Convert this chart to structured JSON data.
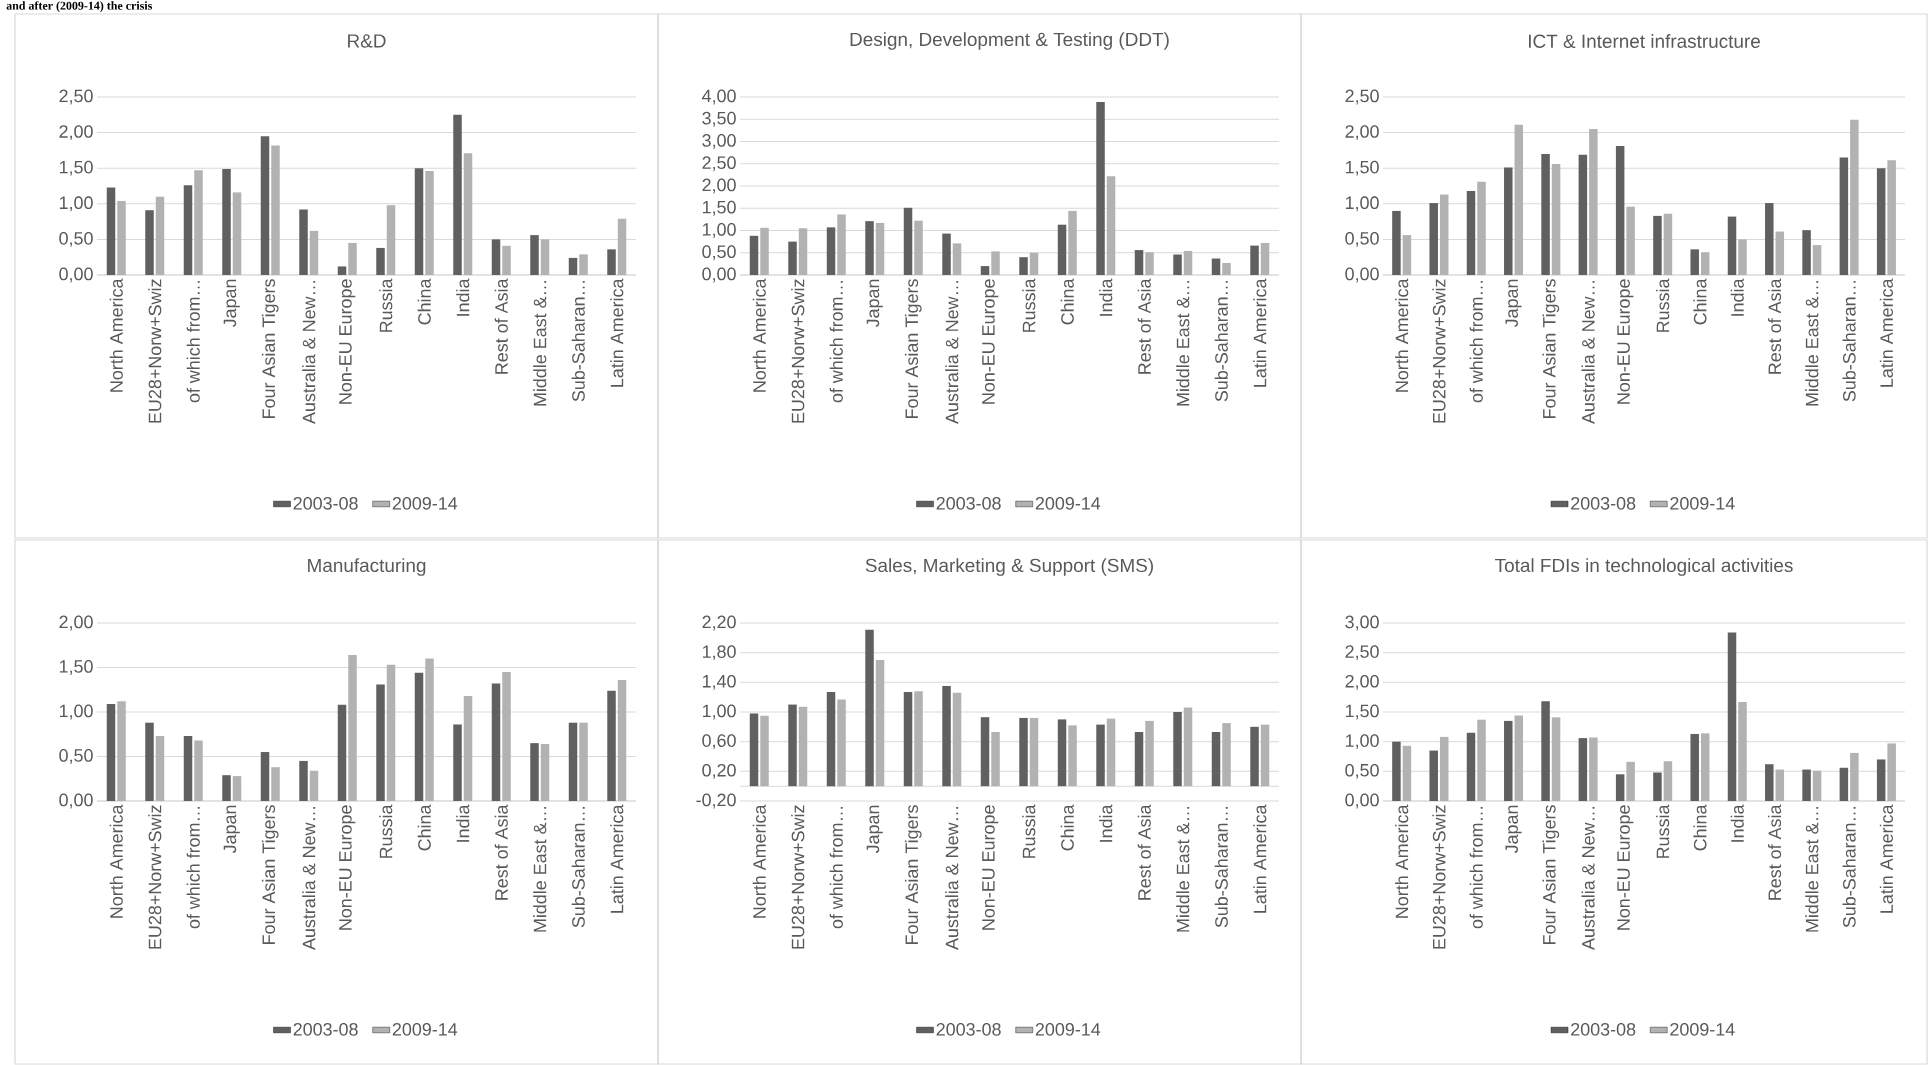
{
  "chart_data": [
    {
      "type": "bar",
      "title": "R&D",
      "annotations": [
        "and after (2009-14) the crisis"
      ],
      "categories": [
        "North America",
        "EU28+Norw+Swiz",
        "of which from…",
        "Japan",
        "Four Asian Tigers",
        "Australia & New…",
        "Non-EU Europe",
        "Russia",
        "China",
        "India",
        "Rest of Asia",
        "Middle East &…",
        "Sub-Saharan…",
        "Latin America"
      ],
      "series": [
        {
          "name": "2003-08",
          "color": "#606060",
          "values": [
            1.23,
            0.91,
            1.26,
            1.49,
            1.95,
            0.92,
            0.12,
            0.38,
            1.5,
            2.25,
            0.5,
            0.56,
            0.24,
            0.36
          ]
        },
        {
          "name": "2009-14",
          "color": "#b2b2b2",
          "values": [
            1.04,
            1.1,
            1.47,
            1.16,
            1.82,
            0.62,
            0.45,
            0.98,
            1.46,
            1.71,
            0.41,
            0.5,
            0.29,
            0.79
          ]
        }
      ],
      "ylim": [
        0,
        2.5
      ],
      "yticks": [
        {
          "value": 0,
          "label": "0,00"
        },
        {
          "value": 0.5,
          "label": "0,50"
        },
        {
          "value": 1,
          "label": "1,00"
        },
        {
          "value": 1.5,
          "label": "1,50"
        },
        {
          "value": 2,
          "label": "2,00"
        },
        {
          "value": 2.5,
          "label": "2,50"
        }
      ],
      "grid": "y",
      "legend": "bottom"
    },
    {
      "type": "bar",
      "title": "Design, Development & Testing (DDT)",
      "categories": [
        "North America",
        "EU28+Norw+Swiz",
        "of which from…",
        "Japan",
        "Four Asian Tigers",
        "Australia & New…",
        "Non-EU Europe",
        "Russia",
        "China",
        "India",
        "Rest of Asia",
        "Middle East &…",
        "Sub-Saharan…",
        "Latin America"
      ],
      "series": [
        {
          "name": "2003-08",
          "color": "#606060",
          "values": [
            0.88,
            0.75,
            1.07,
            1.21,
            1.51,
            0.93,
            0.2,
            0.4,
            1.13,
            3.89,
            0.56,
            0.46,
            0.37,
            0.66
          ]
        },
        {
          "name": "2009-14",
          "color": "#b2b2b2",
          "values": [
            1.06,
            1.05,
            1.36,
            1.17,
            1.22,
            0.71,
            0.53,
            0.5,
            1.44,
            2.22,
            0.51,
            0.54,
            0.27,
            0.72
          ]
        }
      ],
      "ylim": [
        0,
        4
      ],
      "yticks": [
        {
          "value": 0,
          "label": "0,00"
        },
        {
          "value": 0.5,
          "label": "0,50"
        },
        {
          "value": 1,
          "label": "1,00"
        },
        {
          "value": 1.5,
          "label": "1,50"
        },
        {
          "value": 2,
          "label": "2,00"
        },
        {
          "value": 2.5,
          "label": "2,50"
        },
        {
          "value": 3,
          "label": "3,00"
        },
        {
          "value": 3.5,
          "label": "3,50"
        },
        {
          "value": 4,
          "label": "4,00"
        }
      ],
      "grid": "y",
      "legend": "bottom"
    },
    {
      "type": "bar",
      "title": "ICT & Internet infrastructure",
      "categories": [
        "North America",
        "EU28+Norw+Swiz",
        "of which from…",
        "Japan",
        "Four Asian Tigers",
        "Australia & New…",
        "Non-EU Europe",
        "Russia",
        "China",
        "India",
        "Rest of Asia",
        "Middle East &…",
        "Sub-Saharan…",
        "Latin America"
      ],
      "series": [
        {
          "name": "2003-08",
          "color": "#606060",
          "values": [
            0.9,
            1.01,
            1.18,
            1.51,
            1.7,
            1.69,
            1.81,
            0.83,
            0.36,
            0.82,
            1.01,
            0.63,
            1.65,
            1.5
          ]
        },
        {
          "name": "2009-14",
          "color": "#b2b2b2",
          "values": [
            0.56,
            1.13,
            1.31,
            2.11,
            1.56,
            2.05,
            0.96,
            0.86,
            0.32,
            0.5,
            0.61,
            0.42,
            2.18,
            1.61
          ]
        }
      ],
      "ylim": [
        0,
        2.5
      ],
      "yticks": [
        {
          "value": 0,
          "label": "0,00"
        },
        {
          "value": 0.5,
          "label": "0,50"
        },
        {
          "value": 1,
          "label": "1,00"
        },
        {
          "value": 1.5,
          "label": "1,50"
        },
        {
          "value": 2,
          "label": "2,00"
        },
        {
          "value": 2.5,
          "label": "2,50"
        }
      ],
      "grid": "y",
      "legend": "bottom"
    },
    {
      "type": "bar",
      "title": "Manufacturing",
      "categories": [
        "North America",
        "EU28+Norw+Swiz",
        "of which from…",
        "Japan",
        "Four Asian Tigers",
        "Australia & New…",
        "Non-EU Europe",
        "Russia",
        "China",
        "India",
        "Rest of Asia",
        "Middle East &…",
        "Sub-Saharan…",
        "Latin America"
      ],
      "series": [
        {
          "name": "2003-08",
          "color": "#606060",
          "values": [
            1.09,
            0.88,
            0.73,
            0.29,
            0.55,
            0.45,
            1.08,
            1.31,
            1.44,
            0.86,
            1.32,
            0.65,
            0.88,
            1.24
          ]
        },
        {
          "name": "2009-14",
          "color": "#b2b2b2",
          "values": [
            1.12,
            0.73,
            0.68,
            0.28,
            0.38,
            0.34,
            1.64,
            1.53,
            1.6,
            1.18,
            1.45,
            0.64,
            0.88,
            1.36
          ]
        }
      ],
      "ylim": [
        0,
        2
      ],
      "yticks": [
        {
          "value": 0,
          "label": "0,00"
        },
        {
          "value": 0.5,
          "label": "0,50"
        },
        {
          "value": 1,
          "label": "1,00"
        },
        {
          "value": 1.5,
          "label": "1,50"
        },
        {
          "value": 2,
          "label": "2,00"
        }
      ],
      "grid": "y",
      "legend": "bottom"
    },
    {
      "type": "bar",
      "title": "Sales, Marketing & Support (SMS)",
      "categories": [
        "North America",
        "EU28+Norw+Swiz",
        "of which from…",
        "Japan",
        "Four Asian Tigers",
        "Australia & New…",
        "Non-EU Europe",
        "Russia",
        "China",
        "India",
        "Rest of Asia",
        "Middle East &…",
        "Sub-Saharan…",
        "Latin America"
      ],
      "series": [
        {
          "name": "2003-08",
          "color": "#606060",
          "values": [
            0.98,
            1.1,
            1.27,
            2.11,
            1.27,
            1.35,
            0.93,
            0.92,
            0.9,
            0.83,
            0.73,
            1.0,
            0.73,
            0.8
          ]
        },
        {
          "name": "2009-14",
          "color": "#b2b2b2",
          "values": [
            0.95,
            1.07,
            1.17,
            1.7,
            1.28,
            1.26,
            0.73,
            0.92,
            0.82,
            0.91,
            0.88,
            1.06,
            0.85,
            0.83
          ]
        }
      ],
      "ylim": [
        -0.2,
        2.2
      ],
      "yticks": [
        {
          "value": -0.2,
          "label": "-0,20"
        },
        {
          "value": 0.2,
          "label": "0,20"
        },
        {
          "value": 0.6,
          "label": "0,60"
        },
        {
          "value": 1,
          "label": "1,00"
        },
        {
          "value": 1.4,
          "label": "1,40"
        },
        {
          "value": 1.8,
          "label": "1,80"
        },
        {
          "value": 2.2,
          "label": "2,20"
        }
      ],
      "grid": "y",
      "legend": "bottom"
    },
    {
      "type": "bar",
      "title": "Total FDIs in technological activities",
      "categories": [
        "North America",
        "EU28+Norw+Swiz",
        "of which from…",
        "Japan",
        "Four Asian Tigers",
        "Australia & New…",
        "Non-EU Europe",
        "Russia",
        "China",
        "India",
        "Rest of Asia",
        "Middle East &…",
        "Sub-Saharan…",
        "Latin America"
      ],
      "series": [
        {
          "name": "2003-08",
          "color": "#606060",
          "values": [
            1.0,
            0.85,
            1.15,
            1.35,
            1.68,
            1.06,
            0.45,
            0.48,
            1.13,
            2.84,
            0.62,
            0.53,
            0.56,
            0.7
          ]
        },
        {
          "name": "2009-14",
          "color": "#b2b2b2",
          "values": [
            0.93,
            1.08,
            1.37,
            1.44,
            1.41,
            1.07,
            0.66,
            0.67,
            1.14,
            1.67,
            0.53,
            0.51,
            0.81,
            0.97
          ]
        }
      ],
      "ylim": [
        0,
        3
      ],
      "yticks": [
        {
          "value": 0,
          "label": "0,00"
        },
        {
          "value": 0.5,
          "label": "0,50"
        },
        {
          "value": 1,
          "label": "1,00"
        },
        {
          "value": 1.5,
          "label": "1,50"
        },
        {
          "value": 2,
          "label": "2,00"
        },
        {
          "value": 2.5,
          "label": "2,50"
        },
        {
          "value": 3,
          "label": "3,00"
        }
      ],
      "grid": "y",
      "legend": "bottom"
    }
  ]
}
